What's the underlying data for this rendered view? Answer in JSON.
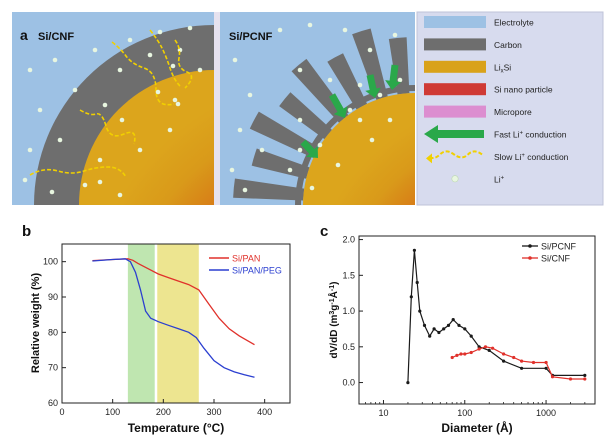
{
  "panel_a": {
    "letter": "a",
    "left_title": "Si/CNF",
    "right_title": "Si/PCNF",
    "legend": [
      {
        "label": "Electrolyte",
        "color": "#9dc1e4",
        "kind": "swatch"
      },
      {
        "label": "Carbon",
        "color": "#6e6e6e",
        "kind": "swatch"
      },
      {
        "label_main": "Li",
        "label_sub": "x",
        "label_tail": "Si",
        "color": "#d9a21a",
        "kind": "swatch"
      },
      {
        "label": "Si nano particle",
        "color": "#cf3a35",
        "kind": "swatch"
      },
      {
        "label": "Micropore",
        "color": "#dc8ed0",
        "kind": "swatch"
      },
      {
        "label_main": "Fast Li",
        "label_sup": "+",
        "label_tail": " conduction",
        "color": "#2aa84a",
        "kind": "green-arrow"
      },
      {
        "label_main": "Slow Li",
        "label_sup": "+",
        "label_tail": " conduction",
        "color": "#f1d000",
        "kind": "yellow-arrow"
      },
      {
        "label_main": "Li",
        "label_sup": "+",
        "label_tail": "",
        "color": "#e8f6e0",
        "kind": "dot"
      }
    ]
  },
  "chart_data": [
    {
      "type": "line",
      "panel": "b",
      "xlabel": "Temperature (°C)",
      "ylabel": "Relative weight (%)",
      "xlim": [
        0,
        450
      ],
      "ylim": [
        60,
        105
      ],
      "xticks": [
        0,
        100,
        200,
        300,
        400
      ],
      "yticks": [
        60,
        70,
        80,
        90,
        100
      ],
      "shaded_regions": [
        {
          "x0": 130,
          "x1": 183,
          "color": "#bfe6b0"
        },
        {
          "x0": 188,
          "x1": 270,
          "color": "#ede590"
        }
      ],
      "legend_position": "top-right",
      "series": [
        {
          "name": "Si/PAN",
          "color": "#e0312b",
          "x": [
            60,
            100,
            130,
            140,
            150,
            170,
            190,
            210,
            230,
            250,
            270,
            290,
            310,
            330,
            350,
            380
          ],
          "y": [
            100.3,
            100.6,
            100.8,
            100.4,
            99.5,
            98,
            96.5,
            95.5,
            94.5,
            93.5,
            92,
            88,
            84,
            81,
            79,
            76.5
          ]
        },
        {
          "name": "Si/PAN/PEG",
          "color": "#2b3fd0",
          "x": [
            60,
            100,
            125,
            135,
            145,
            155,
            165,
            175,
            190,
            210,
            230,
            250,
            265,
            280,
            300,
            320,
            340,
            360,
            380
          ],
          "y": [
            100.2,
            100.6,
            100.8,
            100,
            97,
            92,
            86,
            84,
            83,
            82,
            81,
            80,
            78.5,
            75.5,
            72,
            70,
            68.8,
            68,
            67.3
          ]
        }
      ]
    },
    {
      "type": "line",
      "panel": "c",
      "xlabel": "Diameter (Å)",
      "ylabel_main": "dV/dD (m",
      "ylabel_sup1": "3",
      "ylabel_mid": "g",
      "ylabel_sup2": "-1",
      "ylabel_mid2": "Å",
      "ylabel_sup3": "-1",
      "ylabel_end": ")",
      "xscale": "log",
      "xlim": [
        5,
        4000
      ],
      "ylim": [
        -0.3,
        2.05
      ],
      "xticks": [
        10,
        100,
        1000
      ],
      "yticks": [
        0.0,
        0.5,
        1.0,
        1.5,
        2.0
      ],
      "legend_position": "top-right",
      "series": [
        {
          "name": "Si/PCNF",
          "color": "#1a1a1a",
          "x": [
            20,
            22,
            24,
            26,
            28,
            32,
            37,
            42,
            48,
            55,
            63,
            72,
            85,
            100,
            120,
            150,
            200,
            300,
            500,
            1000,
            1200,
            3000
          ],
          "y": [
            0.0,
            1.2,
            1.85,
            1.4,
            1.0,
            0.8,
            0.65,
            0.75,
            0.7,
            0.75,
            0.8,
            0.88,
            0.8,
            0.75,
            0.65,
            0.5,
            0.45,
            0.3,
            0.2,
            0.2,
            0.1,
            0.1
          ]
        },
        {
          "name": "Si/CNF",
          "color": "#e0312b",
          "x": [
            70,
            80,
            90,
            100,
            120,
            150,
            180,
            220,
            300,
            400,
            500,
            700,
            1000,
            1200,
            2000,
            3000
          ],
          "y": [
            0.35,
            0.38,
            0.4,
            0.4,
            0.42,
            0.47,
            0.5,
            0.48,
            0.4,
            0.35,
            0.3,
            0.28,
            0.28,
            0.08,
            0.05,
            0.05
          ]
        }
      ]
    }
  ]
}
